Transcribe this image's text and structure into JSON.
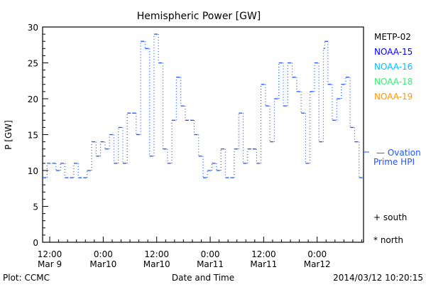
{
  "chart_data": {
    "type": "line",
    "title": "Hemispheric Power [GW]",
    "xlabel": "Date and Time",
    "ylabel": "P [GW]",
    "ylim": [
      0,
      30
    ],
    "yticks": [
      "0",
      "5",
      "10",
      "15",
      "20",
      "25",
      "30"
    ],
    "xlim_hours": [
      0,
      72
    ],
    "xticks": [
      {
        "hour": 1.6,
        "line1": "12:00",
        "line2": "Mar 9"
      },
      {
        "hour": 13.6,
        "line1": "0:00",
        "line2": "Mar10"
      },
      {
        "hour": 25.6,
        "line1": "12:00",
        "line2": "Mar10"
      },
      {
        "hour": 37.6,
        "line1": "0:00",
        "line2": "Mar11"
      },
      {
        "hour": 49.6,
        "line1": "12:00",
        "line2": "Mar11"
      },
      {
        "hour": 61.6,
        "line1": "0:00",
        "line2": "Mar12"
      }
    ],
    "series": [
      {
        "name": "Ovation Prime HPI",
        "color": "#1a55ff",
        "steps": [
          [
            0,
            9
          ],
          [
            1,
            11
          ],
          [
            3,
            10
          ],
          [
            4,
            11
          ],
          [
            5,
            9
          ],
          [
            7,
            11
          ],
          [
            8,
            9
          ],
          [
            10,
            10
          ],
          [
            11,
            14
          ],
          [
            12,
            12
          ],
          [
            13,
            14
          ],
          [
            14,
            13
          ],
          [
            15,
            15
          ],
          [
            16,
            11
          ],
          [
            17,
            16
          ],
          [
            18,
            11
          ],
          [
            19,
            18
          ],
          [
            21,
            15
          ],
          [
            22,
            28
          ],
          [
            23,
            27
          ],
          [
            24,
            12
          ],
          [
            25,
            29
          ],
          [
            26,
            25
          ],
          [
            27,
            13
          ],
          [
            28,
            11
          ],
          [
            29,
            17
          ],
          [
            30,
            23
          ],
          [
            31,
            19
          ],
          [
            32,
            17
          ],
          [
            34,
            15
          ],
          [
            35,
            12
          ],
          [
            36,
            9
          ],
          [
            37,
            10
          ],
          [
            38,
            11
          ],
          [
            39,
            10
          ],
          [
            40,
            13
          ],
          [
            41,
            9
          ],
          [
            43,
            13
          ],
          [
            44,
            18
          ],
          [
            45,
            11
          ],
          [
            46,
            13
          ],
          [
            48,
            11
          ],
          [
            49,
            22
          ],
          [
            50,
            19
          ],
          [
            51,
            14
          ],
          [
            52,
            20
          ],
          [
            53,
            25
          ],
          [
            54,
            19
          ],
          [
            55,
            25
          ],
          [
            56,
            23
          ],
          [
            57,
            21
          ],
          [
            58,
            18
          ],
          [
            59,
            11
          ],
          [
            60,
            21
          ],
          [
            61,
            25
          ],
          [
            62,
            14
          ],
          [
            63,
            27
          ],
          [
            63.3,
            28
          ],
          [
            64,
            22
          ],
          [
            65,
            17
          ],
          [
            66,
            20
          ],
          [
            67,
            22
          ],
          [
            68,
            23
          ],
          [
            69,
            16
          ],
          [
            70,
            14
          ],
          [
            71,
            9
          ]
        ]
      }
    ],
    "legend": [
      {
        "label": "METP-02",
        "color": "#000000"
      },
      {
        "label": "NOAA-15",
        "color": "#0000ff"
      },
      {
        "label": "NOAA-16",
        "color": "#00bfff"
      },
      {
        "label": "NOAA-18",
        "color": "#33ee77"
      },
      {
        "label": "NOAA-19",
        "color": "#ff9900"
      }
    ],
    "hpi_legend": {
      "line1": "— Ovation",
      "line2": "Prime HPI"
    },
    "markers": {
      "south": "+ south",
      "north": "* north"
    },
    "legend_placement": "right"
  },
  "footer": {
    "left": "Plot: CCMC",
    "timestamp": "2014/03/12 10:20:15"
  }
}
